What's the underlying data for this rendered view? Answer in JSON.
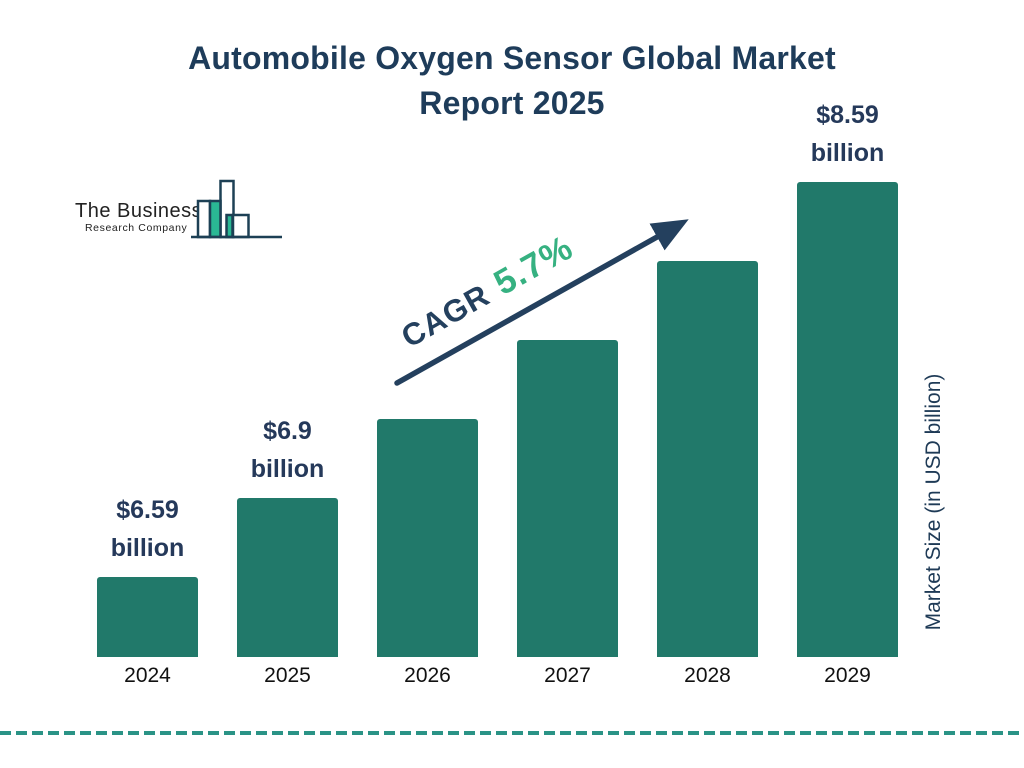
{
  "title": {
    "line1": "Automobile Oxygen Sensor Global Market",
    "line2": "Report 2025"
  },
  "logo": {
    "line1": "The Business",
    "line2": "Research Company"
  },
  "annotation": {
    "cagr_label": "CAGR",
    "cagr_value": "5.7%"
  },
  "chart_data": {
    "type": "bar",
    "title": "Automobile Oxygen Sensor Global Market Report 2025",
    "categories": [
      "2024",
      "2025",
      "2026",
      "2027",
      "2028",
      "2029"
    ],
    "values": [
      6.59,
      6.9,
      7.29,
      7.71,
      8.15,
      8.59
    ],
    "bar_value_labels": [
      {
        "amount": "$6.59",
        "unit": "billion"
      },
      {
        "amount": "$6.9",
        "unit": "billion"
      },
      null,
      null,
      null,
      {
        "amount": "$8.59",
        "unit": "billion"
      }
    ],
    "cagr": "5.7%",
    "xlabel": "",
    "ylabel": "Market Size (in USD billion)",
    "legend_position": "none",
    "grid": false,
    "colors": {
      "bar": "#21796a",
      "title": "#1e3c5a",
      "value_label": "#25395a",
      "year_label": "#111111",
      "cagr_green": "#36b181",
      "arrow_navy": "#24405e",
      "dashed_separator": "#2a9386",
      "logo_teal": "#2ab894",
      "logo_outline": "#1d4055"
    }
  }
}
